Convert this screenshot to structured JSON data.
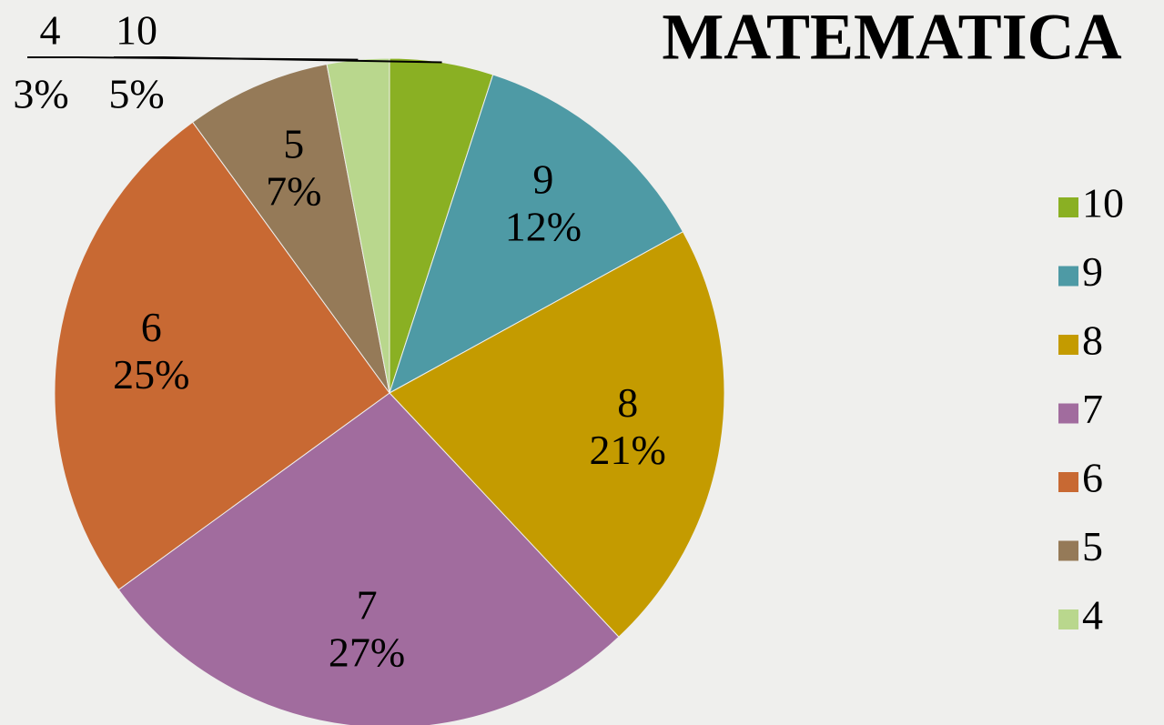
{
  "chart_data": {
    "type": "pie",
    "title": "MATEMATICA",
    "categories": [
      "10",
      "9",
      "8",
      "7",
      "6",
      "5",
      "4"
    ],
    "values": [
      5,
      12,
      21,
      27,
      25,
      7,
      3
    ],
    "value_labels": [
      "5%",
      "12%",
      "21%",
      "27%",
      "25%",
      "7%",
      "3%"
    ],
    "colors": [
      "#8ab023",
      "#4e9aa5",
      "#c49b00",
      "#a16c9e",
      "#c86933",
      "#957a58",
      "#b9d78d"
    ],
    "legend": "right"
  }
}
